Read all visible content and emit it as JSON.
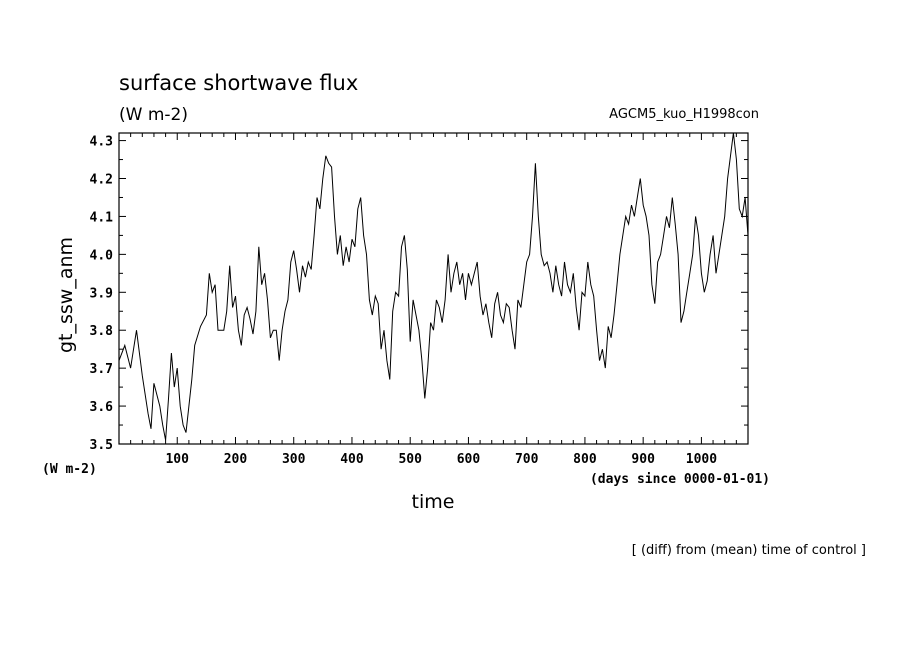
{
  "chart_data": {
    "type": "line",
    "title": "surface shortwave flux",
    "subtitle": "(W m-2)",
    "experiment": "AGCM5_kuo_H1998con",
    "xlabel": "time",
    "xunits": "(days since 0000-01-01)",
    "ylabel": "gt_ssw_anm",
    "yunits": "(W m-2)",
    "note": "[ (diff) from (mean) time of control ]",
    "xlim": [
      0,
      1080
    ],
    "ylim": [
      3.5,
      4.32
    ],
    "x_ticks": [
      100,
      200,
      300,
      400,
      500,
      600,
      700,
      800,
      900,
      1000
    ],
    "x_tick_labels": [
      "100",
      "200",
      "300",
      "400",
      "500",
      "600",
      "700",
      "800",
      "900",
      "1000"
    ],
    "y_ticks": [
      3.5,
      3.6,
      3.7,
      3.8,
      3.9,
      4.0,
      4.1,
      4.2,
      4.3
    ],
    "y_tick_labels": [
      "3.5",
      "3.6",
      "3.7",
      "3.8",
      "3.9",
      "4.0",
      "4.1",
      "4.2",
      "4.3"
    ],
    "grid": false,
    "series": [
      {
        "color": "#000000",
        "x": [
          0,
          10,
          20,
          30,
          40,
          50,
          55,
          60,
          70,
          75,
          80,
          85,
          90,
          95,
          100,
          105,
          110,
          115,
          120,
          125,
          130,
          140,
          150,
          155,
          160,
          165,
          170,
          180,
          185,
          190,
          195,
          200,
          205,
          210,
          215,
          220,
          225,
          230,
          235,
          240,
          245,
          250,
          255,
          260,
          265,
          270,
          275,
          280,
          285,
          290,
          295,
          300,
          305,
          310,
          315,
          320,
          325,
          330,
          335,
          340,
          345,
          350,
          355,
          360,
          365,
          370,
          375,
          380,
          385,
          390,
          395,
          400,
          405,
          410,
          415,
          420,
          425,
          430,
          435,
          440,
          445,
          450,
          455,
          460,
          465,
          470,
          475,
          480,
          485,
          490,
          495,
          500,
          505,
          510,
          515,
          520,
          525,
          530,
          535,
          540,
          545,
          550,
          555,
          560,
          565,
          570,
          575,
          580,
          585,
          590,
          595,
          600,
          605,
          610,
          615,
          620,
          625,
          630,
          635,
          640,
          645,
          650,
          655,
          660,
          665,
          670,
          675,
          680,
          685,
          690,
          695,
          700,
          705,
          710,
          715,
          720,
          725,
          730,
          735,
          740,
          745,
          750,
          755,
          760,
          765,
          770,
          775,
          780,
          785,
          790,
          795,
          800,
          805,
          810,
          815,
          820,
          825,
          830,
          835,
          840,
          845,
          850,
          855,
          860,
          865,
          870,
          875,
          880,
          885,
          890,
          895,
          900,
          905,
          910,
          915,
          920,
          925,
          930,
          935,
          940,
          945,
          950,
          955,
          960,
          965,
          970,
          975,
          980,
          985,
          990,
          995,
          1000,
          1005,
          1010,
          1015,
          1020,
          1025,
          1030,
          1035,
          1040,
          1045,
          1050,
          1055,
          1060,
          1065,
          1070,
          1075,
          1080
        ],
        "y": [
          3.72,
          3.76,
          3.7,
          3.8,
          3.68,
          3.58,
          3.54,
          3.66,
          3.6,
          3.55,
          3.51,
          3.62,
          3.74,
          3.65,
          3.7,
          3.6,
          3.55,
          3.53,
          3.6,
          3.67,
          3.76,
          3.81,
          3.84,
          3.95,
          3.9,
          3.92,
          3.8,
          3.8,
          3.85,
          3.97,
          3.86,
          3.89,
          3.8,
          3.76,
          3.84,
          3.86,
          3.83,
          3.79,
          3.85,
          4.02,
          3.92,
          3.95,
          3.88,
          3.78,
          3.8,
          3.8,
          3.72,
          3.8,
          3.85,
          3.88,
          3.98,
          4.01,
          3.96,
          3.9,
          3.97,
          3.94,
          3.98,
          3.96,
          4.05,
          4.15,
          4.12,
          4.2,
          4.26,
          4.24,
          4.23,
          4.1,
          4.0,
          4.05,
          3.97,
          4.02,
          3.98,
          4.04,
          4.02,
          4.12,
          4.15,
          4.05,
          4.0,
          3.88,
          3.84,
          3.89,
          3.87,
          3.75,
          3.8,
          3.72,
          3.67,
          3.85,
          3.9,
          3.89,
          4.02,
          4.05,
          3.96,
          3.77,
          3.88,
          3.84,
          3.8,
          3.72,
          3.62,
          3.7,
          3.82,
          3.8,
          3.88,
          3.86,
          3.82,
          3.88,
          4.0,
          3.9,
          3.95,
          3.98,
          3.92,
          3.95,
          3.88,
          3.95,
          3.92,
          3.95,
          3.98,
          3.89,
          3.84,
          3.87,
          3.82,
          3.78,
          3.87,
          3.9,
          3.84,
          3.82,
          3.87,
          3.86,
          3.8,
          3.75,
          3.88,
          3.86,
          3.92,
          3.98,
          4.0,
          4.1,
          4.24,
          4.1,
          4.0,
          3.97,
          3.98,
          3.95,
          3.9,
          3.97,
          3.92,
          3.89,
          3.98,
          3.92,
          3.9,
          3.95,
          3.86,
          3.8,
          3.9,
          3.89,
          3.98,
          3.92,
          3.89,
          3.8,
          3.72,
          3.75,
          3.7,
          3.81,
          3.78,
          3.84,
          3.92,
          4.0,
          4.05,
          4.1,
          4.08,
          4.13,
          4.1,
          4.15,
          4.2,
          4.13,
          4.1,
          4.05,
          3.92,
          3.87,
          3.98,
          4.0,
          4.05,
          4.1,
          4.07,
          4.15,
          4.08,
          4.0,
          3.82,
          3.85,
          3.9,
          3.95,
          4.0,
          4.1,
          4.05,
          3.95,
          3.9,
          3.93,
          4.0,
          4.05,
          3.95,
          4.0,
          4.05,
          4.1,
          4.2,
          4.26,
          4.32,
          4.25,
          4.12,
          4.1,
          4.15,
          4.05
        ]
      }
    ]
  }
}
